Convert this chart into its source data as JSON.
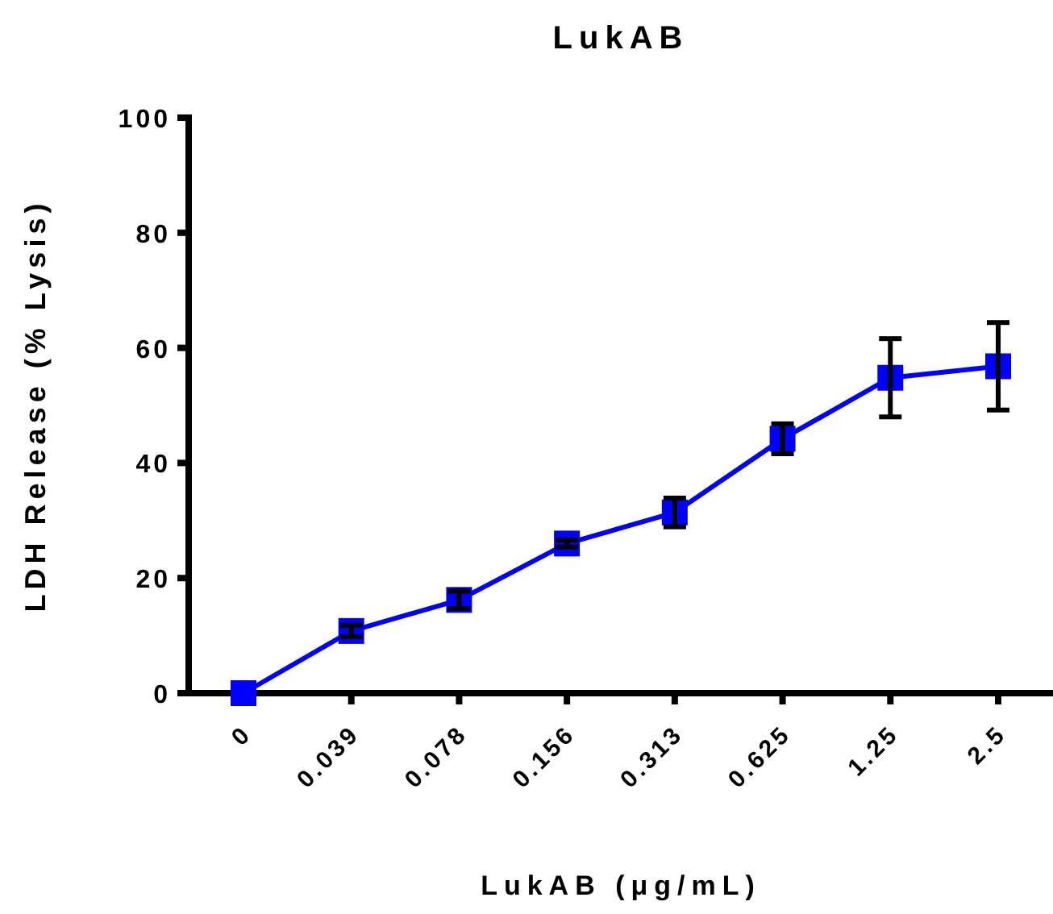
{
  "chart_data": {
    "type": "line",
    "title": "LukAB",
    "xlabel": "LukAB (μg/mL)",
    "ylabel": "LDH Release (% Lysis)",
    "categories": [
      "0",
      "0.039",
      "0.078",
      "0.156",
      "0.313",
      "0.625",
      "1.25",
      "2.5"
    ],
    "series": [
      {
        "color": "#0000ff",
        "values": [
          0,
          10.8,
          16.2,
          26,
          31.4,
          44.2,
          54.8,
          56.8
        ],
        "errors": [
          null,
          1,
          1.5,
          0.6,
          2.5,
          2.6,
          6.8,
          7.6
        ]
      }
    ],
    "ylim": [
      0,
      100
    ],
    "yticks": [
      0,
      20,
      40,
      60,
      80,
      100
    ],
    "marker": "square",
    "line_style": "solid"
  }
}
